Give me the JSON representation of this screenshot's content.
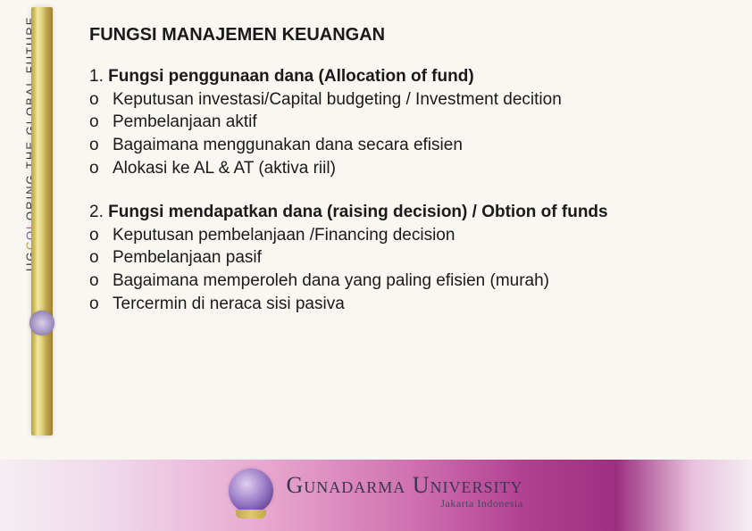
{
  "sidebar": {
    "vertical_text_plain": "UG  COLORING THE GLOBAL FUTURE",
    "vertical_text_segments": [
      {
        "text": "UG  ",
        "cls": ""
      },
      {
        "text": "C",
        "cls": "c1"
      },
      {
        "text": "O",
        "cls": "c3"
      },
      {
        "text": "L",
        "cls": "c2"
      },
      {
        "text": "ORING THE GLOBAL FUTURE",
        "cls": ""
      }
    ]
  },
  "heading": "FUNGSI MANAJEMEN KEUANGAN",
  "sections": [
    {
      "number": "1.",
      "title": "Fungsi penggunaan dana (Allocation of fund)",
      "items": [
        "Keputusan investasi/Capital budgeting / Investment decition",
        "Pembelanjaan aktif",
        "Bagaimana menggunakan dana secara efisien",
        "Alokasi ke AL & AT (aktiva riil)"
      ]
    },
    {
      "number": "2.",
      "title": "Fungsi mendapatkan dana (raising decision) / Obtion of funds",
      "items": [
        "Keputusan pembelanjaan /Financing decision",
        "Pembelanjaan pasif",
        "Bagaimana memperoleh dana yang paling efisien (murah)",
        "Tercermin di neraca sisi pasiva"
      ]
    }
  ],
  "bullet_marker": "o",
  "footer": {
    "title": "Gunadarma University",
    "subtitle": "Jakarta Indonesia"
  },
  "colors": {
    "text": "#1a1a1a",
    "background": "#faf6f2",
    "gold_stripe": [
      "#b8a040",
      "#d4c060",
      "#f0e8a0",
      "#e0d080",
      "#c0a850",
      "#a08030"
    ],
    "footer_band": [
      "#f4eef2",
      "#f0d8ea",
      "#e8a8d0",
      "#d070b0",
      "#b04090",
      "#9c3080",
      "#e8c0dc",
      "#f4eef2"
    ]
  },
  "typography": {
    "body_font": "Arial",
    "heading_fontsize_pt": 15,
    "body_fontsize_pt": 14,
    "footer_title_font": "Times New Roman",
    "footer_title_fontsize_pt": 20
  }
}
